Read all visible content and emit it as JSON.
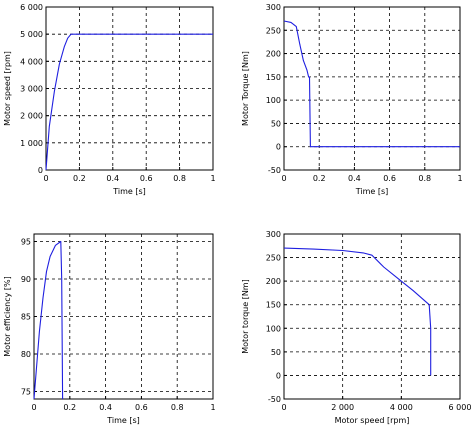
{
  "colors": {
    "series": "#1f1fe0",
    "axis": "#000000",
    "background": "#ffffff"
  },
  "chart_data": [
    {
      "id": "speed",
      "type": "line",
      "title": "",
      "xlabel": "Time [s]",
      "ylabel": "Motor speed [rpm]",
      "xlim": [
        0,
        1
      ],
      "ylim": [
        0,
        6000
      ],
      "xticks": [
        0,
        0.2,
        0.4,
        0.6,
        0.8,
        1
      ],
      "xticklabels": [
        "0",
        "0.2",
        "0.4",
        "0.6",
        "0.8",
        "1"
      ],
      "yticks": [
        0,
        1000,
        2000,
        3000,
        4000,
        5000,
        6000
      ],
      "yticklabels": [
        "0",
        "1 000",
        "2 000",
        "3 000",
        "4 000",
        "5 000",
        "6 000"
      ],
      "grid": true,
      "series": [
        {
          "x": [
            0,
            0.02,
            0.05,
            0.08,
            0.11,
            0.13,
            0.15,
            1.0
          ],
          "y": [
            0,
            1600,
            2900,
            3900,
            4550,
            4850,
            5000,
            5000
          ]
        }
      ]
    },
    {
      "id": "torque_time",
      "type": "line",
      "title": "",
      "xlabel": "Time [s]",
      "ylabel": "Motor Torque [Nm]",
      "xlim": [
        0,
        1
      ],
      "ylim": [
        -50,
        300
      ],
      "xticks": [
        0,
        0.2,
        0.4,
        0.6,
        0.8,
        1
      ],
      "xticklabels": [
        "0",
        "0.2",
        "0.4",
        "0.6",
        "0.8",
        "1"
      ],
      "yticks": [
        -50,
        0,
        50,
        100,
        150,
        200,
        250,
        300
      ],
      "yticklabels": [
        "-50",
        "0",
        "50",
        "100",
        "150",
        "200",
        "250",
        "300"
      ],
      "grid": true,
      "series": [
        {
          "x": [
            0,
            0.04,
            0.07,
            0.09,
            0.11,
            0.13,
            0.14,
            0.145,
            0.15,
            0.16,
            1.0
          ],
          "y": [
            270,
            267,
            258,
            220,
            185,
            165,
            150,
            150,
            0,
            0,
            0
          ]
        }
      ]
    },
    {
      "id": "efficiency",
      "type": "line",
      "title": "",
      "xlabel": "Time [s]",
      "ylabel": "Motor efficiency [%]",
      "xlim": [
        0,
        1
      ],
      "ylim": [
        74,
        96
      ],
      "xticks": [
        0,
        0.2,
        0.4,
        0.6,
        0.8,
        1
      ],
      "xticklabels": [
        "0",
        "0.2",
        "0.4",
        "0.6",
        "0.8",
        "1"
      ],
      "yticks": [
        75,
        80,
        85,
        90,
        95
      ],
      "yticklabels": [
        "75",
        "80",
        "85",
        "90",
        "95"
      ],
      "grid": true,
      "series": [
        {
          "x": [
            0.0,
            0.01,
            0.02,
            0.03,
            0.05,
            0.07,
            0.09,
            0.12,
            0.15,
            0.155,
            0.16
          ],
          "y": [
            74,
            77,
            80,
            83,
            87.5,
            91,
            93,
            94.5,
            95,
            90,
            74
          ]
        }
      ]
    },
    {
      "id": "torque_speed",
      "type": "line",
      "title": "",
      "xlabel": "Motor speed [rpm]",
      "ylabel": "Motor torque [Nm]",
      "xlim": [
        0,
        6000
      ],
      "ylim": [
        -50,
        300
      ],
      "xticks": [
        0,
        2000,
        4000,
        6000
      ],
      "xticklabels": [
        "0",
        "2 000",
        "4 000",
        "6 000"
      ],
      "yticks": [
        -50,
        0,
        50,
        100,
        150,
        200,
        250,
        300
      ],
      "yticklabels": [
        "-50",
        "0",
        "50",
        "100",
        "150",
        "200",
        "250",
        "300"
      ],
      "grid": true,
      "series": [
        {
          "x": [
            0,
            1000,
            2000,
            2700,
            3000,
            3400,
            3900,
            4400,
            4950,
            5000,
            5000
          ],
          "y": [
            270,
            268,
            265,
            260,
            255,
            230,
            205,
            180,
            150,
            100,
            0
          ]
        }
      ]
    }
  ]
}
